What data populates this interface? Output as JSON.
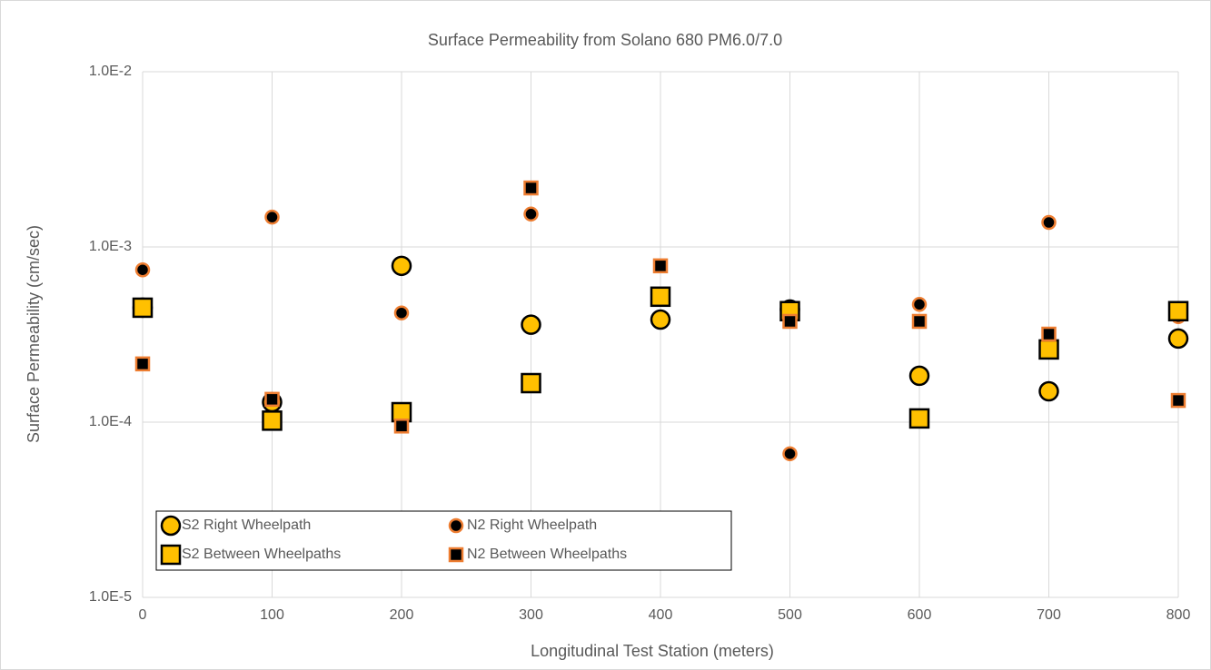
{
  "chart_data": {
    "type": "scatter",
    "title": "Surface Permeability from Solano 680 PM6.0/7.0",
    "x_label": "Longitudinal Test Station (meters)",
    "y_label": "Surface Permeability (cm/sec)",
    "x": [
      0,
      100,
      200,
      300,
      400,
      500,
      600,
      700,
      800
    ],
    "series": [
      {
        "name": "S2 Right Wheelpath",
        "marker": "circle",
        "color": "#ffc000",
        "edge": "#000000",
        "values": [
          0.00045,
          0.00013,
          0.00078,
          0.00036,
          0.000385,
          0.00044,
          0.000184,
          0.00015,
          0.0003
        ]
      },
      {
        "name": "N2 Right Wheelpath",
        "marker": "circle",
        "color": "#000000",
        "edge": "#ed7d31",
        "values": [
          0.00074,
          0.00148,
          0.00042,
          0.00154,
          null,
          6.6e-05,
          0.00047,
          0.00138,
          0.0004
        ]
      },
      {
        "name": "S2 Between Wheelpaths",
        "marker": "square",
        "color": "#ffc000",
        "edge": "#000000",
        "values": [
          0.00045,
          0.000102,
          0.000114,
          0.000167,
          0.00052,
          0.00043,
          0.000105,
          0.00026,
          0.00043
        ]
      },
      {
        "name": "N2 Between Wheelpaths",
        "marker": "square",
        "color": "#000000",
        "edge": "#ed7d31",
        "values": [
          0.000215,
          0.000135,
          9.5e-05,
          0.00217,
          0.00078,
          0.000376,
          0.000376,
          0.000318,
          0.000133
        ]
      }
    ],
    "xlim": [
      0,
      800
    ],
    "xticks": [
      0,
      100,
      200,
      300,
      400,
      500,
      600,
      700,
      800
    ],
    "ylim": [
      1e-05,
      0.01
    ],
    "log_y": true,
    "yticks": [
      {
        "value": 1e-05,
        "label": "1.0E-5"
      },
      {
        "value": 0.0001,
        "label": "1.0E-4"
      },
      {
        "value": 0.001,
        "label": "1.0E-3"
      },
      {
        "value": 0.01,
        "label": "1.0E-2"
      }
    ],
    "grid": true,
    "legend": "lower left"
  }
}
